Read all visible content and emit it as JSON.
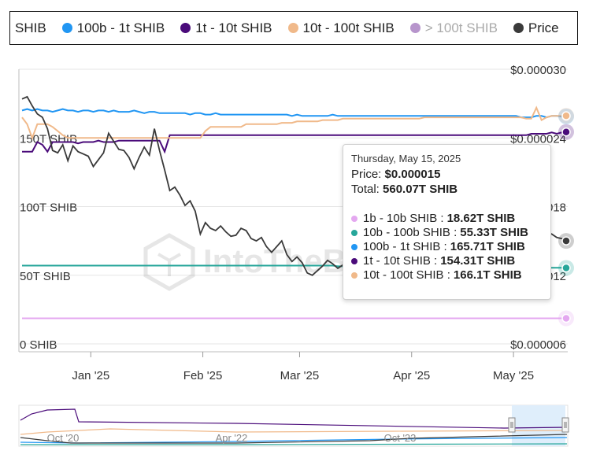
{
  "legend": [
    {
      "label": "SHIB",
      "color": "",
      "muted": false
    },
    {
      "label": "100b - 1t SHIB",
      "color": "#2196f3",
      "muted": false
    },
    {
      "label": "1t - 10t SHIB",
      "color": "#4a0b7a",
      "muted": false
    },
    {
      "label": "10t - 100t SHIB",
      "color": "#f0b98a",
      "muted": false
    },
    {
      "label": "> 100t SHIB",
      "color": "#b795cc",
      "muted": true
    },
    {
      "label": "Price",
      "color": "#3a3a3a",
      "muted": false
    }
  ],
  "watermark": "IntoTheBlock",
  "tooltip": {
    "date": "Thursday, May 15, 2025",
    "price_label": "Price:",
    "price_value": "$0.000015",
    "total_label": "Total:",
    "total_value": "560.07T SHIB",
    "rows": [
      {
        "label": "1b - 10b SHIB :",
        "value": "18.62T SHIB",
        "color": "#e4a8f0"
      },
      {
        "label": "10b - 100b SHIB :",
        "value": "55.33T SHIB",
        "color": "#26a69a"
      },
      {
        "label": "100b - 1t SHIB :",
        "value": "165.71T SHIB",
        "color": "#2196f3"
      },
      {
        "label": "1t - 10t SHIB :",
        "value": "154.31T SHIB",
        "color": "#4a0b7a"
      },
      {
        "label": "10t - 100t SHIB :",
        "value": "166.1T SHIB",
        "color": "#f0b98a"
      }
    ]
  },
  "chart_data": {
    "type": "line",
    "x_ticks": [
      "Jan '25",
      "Feb '25",
      "Mar '25",
      "Apr '25",
      "May '25"
    ],
    "x_tick_index": [
      13.5,
      35.5,
      54.5,
      76.5,
      96.5
    ],
    "x_count": 108,
    "y_left_ticks": [
      {
        "label": "150T SHIB",
        "value": 150
      },
      {
        "label": "100T SHIB",
        "value": 100
      },
      {
        "label": "50T SHIB",
        "value": 50
      },
      {
        "label": "0 SHIB",
        "value": 0
      }
    ],
    "y_left_lim": [
      0,
      200
    ],
    "y_right_ticks": [
      {
        "label": "$0.000030",
        "value": 3e-05
      },
      {
        "label": "$0.000024",
        "value": 2.4e-05
      },
      {
        "label": "$0.000018",
        "value": 1.8e-05
      },
      {
        "label": "$0.000012",
        "value": 1.2e-05
      },
      {
        "label": "$0.000006",
        "value": 6e-06
      }
    ],
    "y_right_lim": [
      6e-06,
      3e-05
    ],
    "series": [
      {
        "name": "1b - 10b SHIB",
        "axis": "left",
        "color": "#e4a8f0",
        "values": [
          18.6,
          18.6,
          18.6,
          18.6,
          18.6,
          18.6,
          18.6,
          18.6,
          18.6,
          18.6,
          18.6,
          18.6,
          18.6,
          18.6,
          18.6,
          18.6,
          18.6,
          18.6,
          18.6,
          18.6,
          18.6,
          18.6,
          18.6,
          18.6,
          18.6,
          18.6,
          18.6,
          18.6,
          18.6,
          18.6,
          18.6,
          18.6,
          18.6,
          18.6,
          18.6,
          18.6,
          18.6,
          18.6,
          18.6,
          18.6,
          18.6,
          18.6,
          18.6,
          18.6,
          18.6,
          18.6,
          18.6,
          18.6,
          18.6,
          18.6,
          18.6,
          18.6,
          18.6,
          18.6,
          18.6,
          18.6,
          18.6,
          18.6,
          18.6,
          18.6,
          18.6,
          18.6,
          18.6,
          18.6,
          18.6,
          18.6,
          18.6,
          18.6,
          18.6,
          18.6,
          18.6,
          18.6,
          18.6,
          18.6,
          18.6,
          18.6,
          18.6,
          18.6,
          18.6,
          18.6,
          18.6,
          18.6,
          18.6,
          18.6,
          18.6,
          18.6,
          18.6,
          18.6,
          18.6,
          18.6,
          18.6,
          18.6,
          18.6,
          18.6,
          18.6,
          18.6,
          18.6,
          18.6,
          18.6,
          18.6,
          18.6,
          18.6,
          18.6,
          18.6,
          18.6,
          18.6,
          18.6,
          18.62
        ]
      },
      {
        "name": "10b - 100b SHIB",
        "axis": "left",
        "color": "#26a69a",
        "values": [
          57,
          57,
          57,
          57,
          57,
          57,
          57,
          57,
          57,
          57,
          57,
          57,
          57,
          57,
          57,
          57,
          57,
          57,
          57,
          57,
          57,
          57,
          57,
          57,
          57,
          57,
          57,
          57,
          57,
          57,
          57,
          57,
          57,
          57,
          57,
          57,
          57,
          57,
          57,
          57,
          57,
          57,
          57,
          57,
          57,
          57,
          57,
          57,
          57,
          57,
          57,
          57,
          57,
          57,
          57,
          57,
          57,
          57,
          57,
          57,
          57,
          57,
          56.5,
          56.5,
          56.5,
          56.5,
          56.5,
          56.5,
          56.5,
          56.5,
          56.5,
          56.5,
          56.5,
          56.5,
          56.5,
          56.5,
          56.5,
          56.5,
          56.5,
          56.5,
          56,
          56,
          56,
          56,
          56,
          56,
          56,
          56,
          56,
          56,
          56,
          56,
          56,
          56,
          55.5,
          55.5,
          55.5,
          55.5,
          55.5,
          55.5,
          55.5,
          55.5,
          55.5,
          55.5,
          55.5,
          55.5,
          55.5,
          55.33
        ]
      },
      {
        "name": "100b - 1t SHIB",
        "axis": "left",
        "color": "#2196f3",
        "values": [
          170,
          171,
          170,
          171,
          170,
          170,
          169,
          170,
          171,
          170,
          170,
          169,
          170,
          170,
          169,
          170,
          170,
          169,
          170,
          169,
          169,
          169,
          170,
          169,
          168,
          169,
          169,
          168,
          168,
          168,
          168,
          168,
          168,
          167,
          168,
          168,
          167,
          167,
          168,
          167,
          167,
          167,
          167,
          167,
          167,
          167,
          167,
          167,
          167,
          167,
          167,
          167,
          167,
          166,
          167,
          166,
          166,
          166,
          166,
          166,
          166,
          167,
          166,
          166,
          166,
          166,
          166,
          166,
          166,
          166,
          166,
          166,
          166,
          166,
          166,
          166,
          166,
          166,
          166,
          166,
          166,
          166,
          166,
          166,
          166,
          166,
          166,
          166,
          166,
          166,
          166,
          166,
          166,
          166,
          166,
          166,
          166,
          166,
          165,
          165,
          165,
          166,
          166,
          165,
          166,
          166,
          165.5,
          165.71
        ]
      },
      {
        "name": "1t - 10t SHIB",
        "axis": "left",
        "color": "#4a0b7a",
        "values": [
          140,
          140,
          140,
          147,
          145,
          140,
          147,
          147,
          147,
          147,
          147,
          146,
          147,
          147,
          147,
          148,
          147,
          147,
          147,
          148,
          148,
          148,
          148,
          148,
          148,
          148,
          148,
          148,
          140,
          152,
          152,
          152,
          152,
          152,
          152,
          152,
          152,
          152,
          152,
          152,
          152,
          152,
          152,
          152,
          152,
          152,
          152,
          152,
          152,
          152,
          152,
          152,
          152,
          152,
          152,
          152,
          152,
          152,
          152,
          152,
          152,
          152,
          152,
          152,
          152,
          152,
          152,
          152,
          152,
          152,
          152,
          152,
          152,
          152,
          152,
          152,
          152,
          152,
          152,
          152,
          152,
          152,
          152,
          152,
          152,
          152,
          152,
          152,
          152,
          152,
          152,
          152,
          152,
          152,
          152,
          152,
          152,
          152,
          152,
          152,
          153,
          153,
          153,
          153,
          154,
          153,
          154,
          154.31
        ]
      },
      {
        "name": "10t - 100t SHIB",
        "axis": "left",
        "color": "#f0b98a",
        "values": [
          165,
          160,
          150,
          160,
          160,
          160,
          158,
          155,
          152,
          150,
          150,
          150,
          150,
          150,
          150,
          150,
          150,
          150,
          150,
          150,
          150,
          150,
          150,
          150,
          150,
          150,
          150,
          150,
          150,
          150,
          150,
          150,
          150,
          150,
          150,
          150,
          155,
          158,
          158,
          158,
          158,
          158,
          158,
          158,
          160,
          160,
          160,
          160,
          160,
          160,
          160,
          161,
          161,
          161,
          162,
          162,
          162,
          162,
          162,
          163,
          163,
          163,
          163,
          164,
          164,
          164,
          164,
          164,
          164,
          164,
          164,
          164,
          164,
          164,
          164,
          164,
          164,
          164,
          164,
          165,
          165,
          165,
          165,
          165,
          165,
          165,
          165,
          165,
          165,
          165,
          165,
          165,
          165,
          165,
          165,
          165,
          165,
          165,
          165,
          164,
          164,
          172,
          163,
          165,
          166,
          166,
          166,
          166.1
        ]
      },
      {
        "name": "Price",
        "axis": "right",
        "color": "#3a3a3a",
        "values": [
          2.74e-05,
          2.76e-05,
          2.68e-05,
          2.61e-05,
          2.58e-05,
          2.48e-05,
          2.29e-05,
          2.27e-05,
          2.34e-05,
          2.2e-05,
          2.33e-05,
          2.28e-05,
          2.26e-05,
          2.24e-05,
          2.15e-05,
          2.21e-05,
          2.27e-05,
          2.44e-05,
          2.37e-05,
          2.3e-05,
          2.29e-05,
          2.23e-05,
          2.13e-05,
          2.23e-05,
          2.32e-05,
          2.25e-05,
          2.48e-05,
          2.29e-05,
          2.12e-05,
          1.94e-05,
          1.97e-05,
          1.9e-05,
          1.81e-05,
          1.85e-05,
          1.76e-05,
          1.56e-05,
          1.66e-05,
          1.61e-05,
          1.59e-05,
          1.63e-05,
          1.58e-05,
          1.54e-05,
          1.55e-05,
          1.61e-05,
          1.59e-05,
          1.52e-05,
          1.5e-05,
          1.53e-05,
          1.45e-05,
          1.4e-05,
          1.45e-05,
          1.5e-05,
          1.38e-05,
          1.32e-05,
          1.36e-05,
          1.31e-05,
          1.22e-05,
          1.2e-05,
          1.24e-05,
          1.28e-05,
          1.33e-05,
          1.3e-05,
          1.26e-05,
          1.29e-05,
          1.27e-05,
          1.25e-05,
          1.28e-05,
          1.29e-05,
          1.27e-05,
          1.28e-05,
          1.28e-05,
          1.27e-05,
          1.26e-05,
          1.27e-05,
          1.28e-05,
          1.28e-05,
          1.29e-05,
          1.28e-05,
          1.29e-05,
          1.28e-05,
          1.26e-05,
          1.27e-05,
          1.26e-05,
          1.28e-05,
          1.28e-05,
          1.29e-05,
          1.3e-05,
          1.31e-05,
          1.33e-05,
          1.34e-05,
          1.36e-05,
          1.38e-05,
          1.41e-05,
          1.4e-05,
          1.44e-05,
          1.46e-05,
          1.48e-05,
          1.5e-05,
          1.52e-05,
          1.55e-05,
          1.58e-05,
          1.61e-05,
          1.62e-05,
          1.57e-05,
          1.56e-05,
          1.53e-05,
          1.52e-05,
          1.5e-05
        ]
      }
    ],
    "navigator": {
      "x_ticks": [
        "Oct '20",
        "Apr '22",
        "Oct '23"
      ]
    }
  }
}
